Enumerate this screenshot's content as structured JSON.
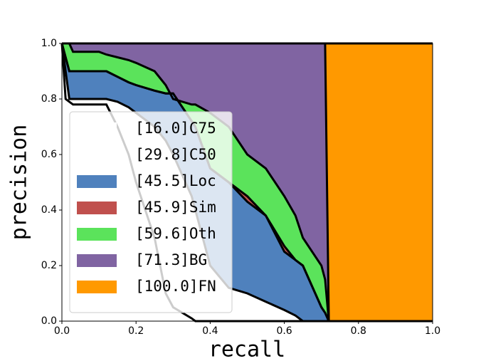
{
  "chart_data": {
    "type": "area",
    "x_label": "recall",
    "y_label": "precision",
    "x": [
      0,
      0.01,
      0.02,
      0.03,
      0.1,
      0.12,
      0.15,
      0.18,
      0.2,
      0.25,
      0.28,
      0.3,
      0.35,
      0.36,
      0.4,
      0.45,
      0.5,
      0.55,
      0.6,
      0.63,
      0.65,
      0.7,
      0.71,
      0.72,
      1.0
    ],
    "series": [
      {
        "name": "[16.0]C75",
        "color": "#ffffff",
        "values": [
          1,
          0.8,
          0.79,
          0.78,
          0.78,
          0.78,
          0.7,
          0.6,
          0.5,
          0.3,
          0.1,
          0.05,
          0.01,
          0,
          0,
          0,
          0,
          0,
          0,
          0,
          0,
          0,
          0,
          0,
          0
        ]
      },
      {
        "name": "[29.8]C50",
        "color": "#ffffff",
        "values": [
          1,
          0.9,
          0.8,
          0.8,
          0.8,
          0.8,
          0.79,
          0.77,
          0.75,
          0.7,
          0.65,
          0.6,
          0.45,
          0.4,
          0.2,
          0.12,
          0.1,
          0.07,
          0.04,
          0.02,
          0,
          0,
          0,
          0,
          0
        ]
      },
      {
        "name": "[45.5]Loc",
        "color": "#4f81bd",
        "values": [
          1,
          0.95,
          0.9,
          0.9,
          0.9,
          0.9,
          0.88,
          0.86,
          0.85,
          0.83,
          0.82,
          0.82,
          0.72,
          0.7,
          0.55,
          0.5,
          0.43,
          0.38,
          0.25,
          0.22,
          0.2,
          0.05,
          0.03,
          0,
          0
        ]
      },
      {
        "name": "[45.9]Sim",
        "color": "#c0504d",
        "values": [
          1,
          0.95,
          0.9,
          0.9,
          0.9,
          0.9,
          0.88,
          0.86,
          0.85,
          0.83,
          0.82,
          0.82,
          0.72,
          0.7,
          0.55,
          0.5,
          0.45,
          0.38,
          0.27,
          0.22,
          0.2,
          0.05,
          0.03,
          0,
          0
        ]
      },
      {
        "name": "[59.6]Oth",
        "color": "#5be35b",
        "values": [
          1,
          1,
          1,
          0.97,
          0.97,
          0.96,
          0.95,
          0.94,
          0.93,
          0.9,
          0.85,
          0.8,
          0.78,
          0.78,
          0.75,
          0.7,
          0.6,
          0.55,
          0.45,
          0.38,
          0.3,
          0.2,
          0.15,
          0,
          0
        ]
      },
      {
        "name": "[71.3]BG",
        "color": "#8064a2",
        "values": [
          1,
          1,
          1,
          1,
          1,
          1,
          1,
          1,
          1,
          1,
          1,
          1,
          1,
          1,
          1,
          1,
          1,
          1,
          1,
          1,
          1,
          1,
          1,
          0,
          0
        ]
      },
      {
        "name": "[100.0]FN",
        "color": "#ff9900",
        "values": [
          1,
          1,
          1,
          1,
          1,
          1,
          1,
          1,
          1,
          1,
          1,
          1,
          1,
          1,
          1,
          1,
          1,
          1,
          1,
          1,
          1,
          1,
          1,
          1,
          1
        ]
      }
    ],
    "xlim": [
      0,
      1
    ],
    "ylim": [
      0,
      1
    ],
    "xticks": [
      {
        "value": 0,
        "label": "0.0"
      },
      {
        "value": 0.2,
        "label": "0.2"
      },
      {
        "value": 0.4,
        "label": "0.4"
      },
      {
        "value": 0.6,
        "label": "0.6"
      },
      {
        "value": 0.8,
        "label": "0.8"
      },
      {
        "value": 1,
        "label": "1.0"
      }
    ],
    "yticks": [
      {
        "value": 0,
        "label": "0.0"
      },
      {
        "value": 0.2,
        "label": "0.2"
      },
      {
        "value": 0.4,
        "label": "0.4"
      },
      {
        "value": 0.6,
        "label": "0.6"
      },
      {
        "value": 0.8,
        "label": "0.8"
      },
      {
        "value": 1,
        "label": "1.0"
      }
    ],
    "legend": "lower-left"
  }
}
